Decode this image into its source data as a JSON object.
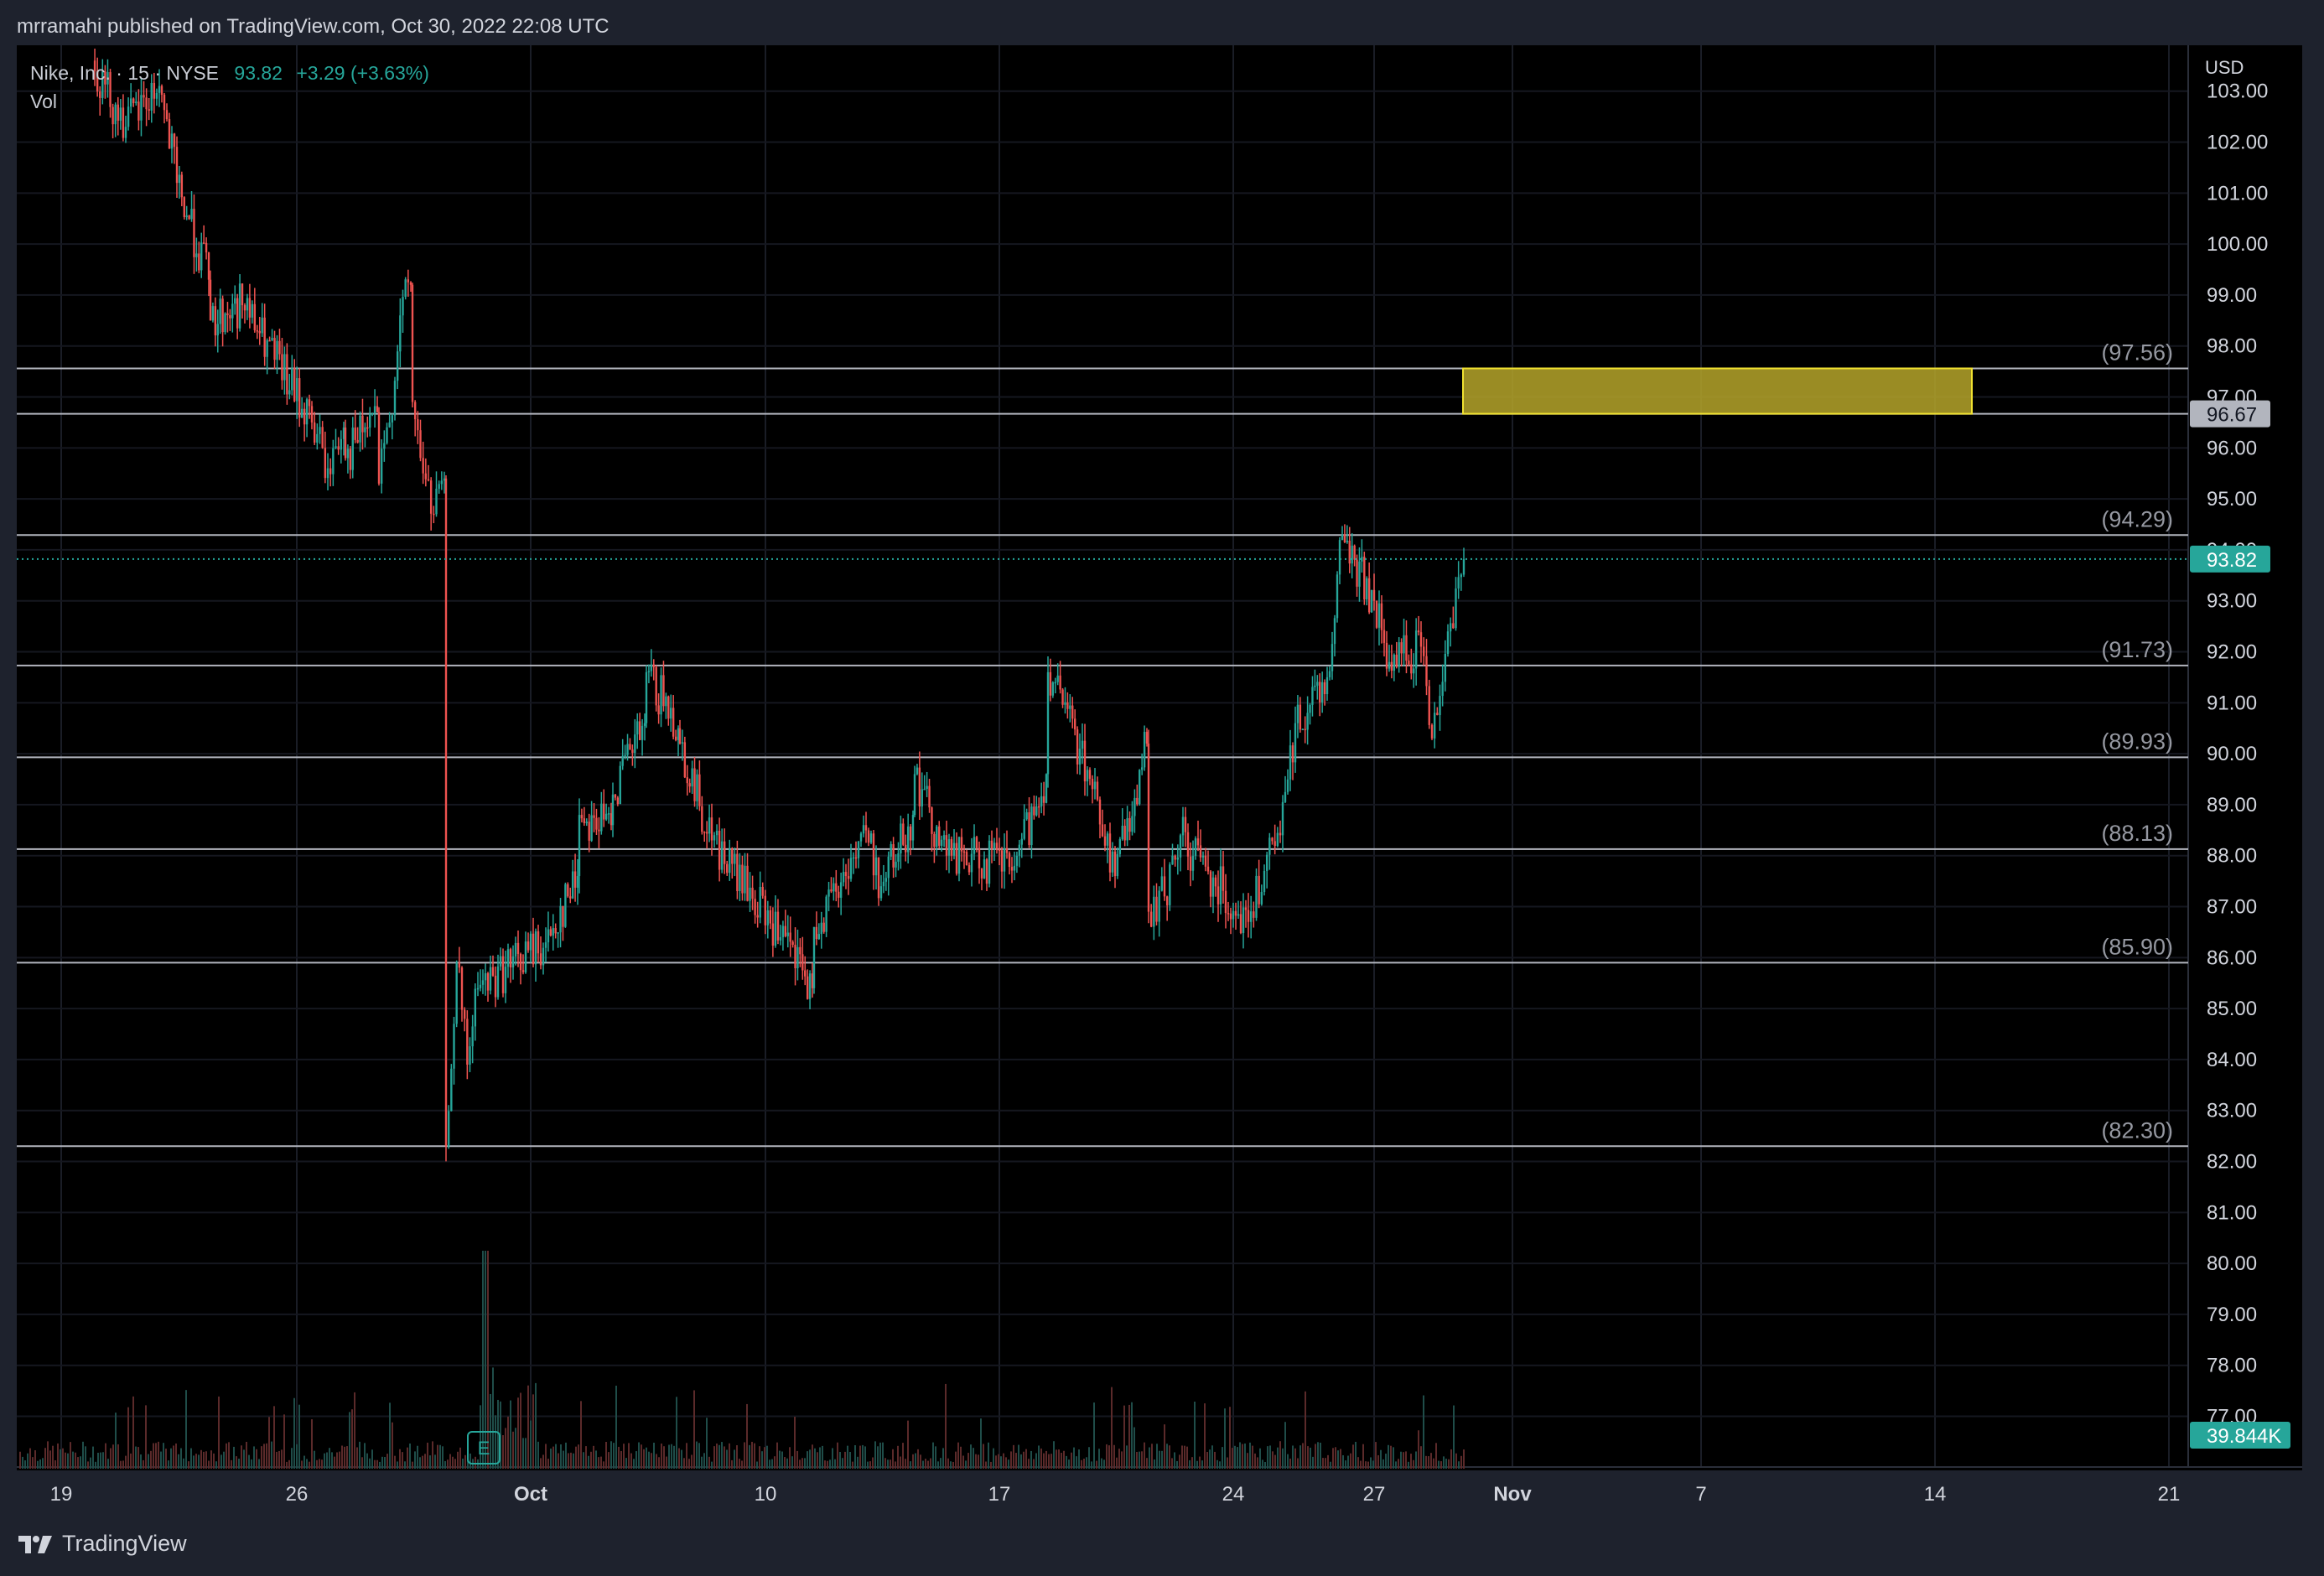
{
  "header": {
    "published_text": "mrramahi published on TradingView.com, Oct 30, 2022 22:08 UTC"
  },
  "legend": {
    "symbol": "Nike, Inc.",
    "interval": "15",
    "exchange": "NYSE",
    "price": "93.82",
    "change": "+3.29 (+3.63%)",
    "volume_label": "Vol"
  },
  "footer": {
    "brand": "TradingView",
    "logo_icon": "tradingview-logo-icon"
  },
  "colors": {
    "background": "#000000",
    "frame": "#1e222d",
    "up": "#26a69a",
    "down": "#ef5350",
    "level_line": "#b2b5be",
    "zone_fill": "#b5a42a",
    "zone_border": "#f0e130",
    "text": "#d1d4dc"
  },
  "chart_data": {
    "type": "candlestick",
    "currency": "USD",
    "ylim": [
      76.7,
      103.9
    ],
    "y_ticks": [
      "103.00",
      "102.00",
      "101.00",
      "100.00",
      "99.00",
      "98.00",
      "97.00",
      "96.00",
      "95.00",
      "94.00",
      "93.00",
      "92.00",
      "91.00",
      "90.00",
      "89.00",
      "88.00",
      "87.00",
      "86.00",
      "85.00",
      "84.00",
      "83.00",
      "82.00",
      "81.00",
      "80.00",
      "79.00",
      "78.00",
      "77.00"
    ],
    "x_ticks": [
      "19",
      "26",
      "Oct",
      "10",
      "17",
      "24",
      "27",
      "Nov",
      "7",
      "14",
      "21"
    ],
    "horizontal_levels": [
      {
        "value": 97.56,
        "label": "(97.56)"
      },
      {
        "value": 96.67,
        "label": "96.67"
      },
      {
        "value": 94.29,
        "label": "(94.29)"
      },
      {
        "value": 91.73,
        "label": "(91.73)"
      },
      {
        "value": 89.93,
        "label": "(89.93)"
      },
      {
        "value": 88.13,
        "label": "(88.13)"
      },
      {
        "value": 85.9,
        "label": "(85.90)"
      },
      {
        "value": 82.3,
        "label": "(82.30)"
      }
    ],
    "zone": {
      "from_date": "Oct 30",
      "to_date": "Nov 15",
      "low": 96.67,
      "high": 97.56
    },
    "current_price": {
      "value": 93.82,
      "label": "93.82"
    },
    "volume_badge": "39.844K",
    "earnings_marker": "E",
    "price_path": [
      {
        "x": "Sep 19",
        "close": 103.6
      },
      {
        "x": "Sep 20",
        "close": 102.3
      },
      {
        "x": "Sep 21",
        "close": 103.1
      },
      {
        "x": "Sep 22",
        "close": 101.2
      },
      {
        "x": "Sep 22",
        "close": 99.3
      },
      {
        "x": "Sep 23",
        "close": 98.5
      },
      {
        "x": "Sep 23",
        "close": 98.8
      },
      {
        "x": "Sep 26",
        "close": 96.5
      },
      {
        "x": "Sep 26",
        "close": 95.6
      },
      {
        "x": "Sep 26",
        "close": 96.4
      },
      {
        "x": "Sep 27",
        "close": 95.8
      },
      {
        "x": "Sep 27",
        "close": 96.7
      },
      {
        "x": "Sep 28",
        "close": 95.3
      },
      {
        "x": "Sep 28",
        "close": 96.5
      },
      {
        "x": "Sep 28",
        "close": 98.6
      },
      {
        "x": "Sep 28",
        "close": 99.2
      },
      {
        "x": "Sep 29",
        "close": 96.9
      },
      {
        "x": "Sep 29",
        "close": 95.5
      },
      {
        "x": "Sep 29",
        "close": 94.7
      },
      {
        "x": "Sep 29",
        "close": 95.4
      },
      {
        "x": "Sep 30",
        "close": 82.3
      },
      {
        "x": "Sep 30",
        "close": 85.9
      },
      {
        "x": "Sep 30",
        "close": 83.9
      },
      {
        "x": "Sep 30",
        "close": 85.4
      },
      {
        "x": "Oct 3",
        "close": 86.3
      },
      {
        "x": "Oct 3",
        "close": 87.6
      },
      {
        "x": "Oct 4",
        "close": 88.8
      },
      {
        "x": "Oct 4",
        "close": 88.6
      },
      {
        "x": "Oct 5",
        "close": 89.2
      },
      {
        "x": "Oct 5",
        "close": 90.6
      },
      {
        "x": "Oct 6",
        "close": 91.6
      },
      {
        "x": "Oct 6",
        "close": 90.5
      },
      {
        "x": "Oct 7",
        "close": 90.2
      },
      {
        "x": "Oct 7",
        "close": 88.3
      },
      {
        "x": "Oct 10",
        "close": 86.4
      },
      {
        "x": "Oct 10",
        "close": 85.4
      },
      {
        "x": "Oct 11",
        "close": 86.6
      },
      {
        "x": "Oct 11",
        "close": 87.6
      },
      {
        "x": "Oct 12",
        "close": 88.6
      },
      {
        "x": "Oct 13",
        "close": 87.4
      },
      {
        "x": "Oct 13",
        "close": 88.8
      },
      {
        "x": "Oct 14",
        "close": 89.6
      },
      {
        "x": "Oct 14",
        "close": 88.0
      },
      {
        "x": "Oct 17",
        "close": 87.8
      },
      {
        "x": "Oct 17",
        "close": 89.6
      },
      {
        "x": "Oct 18",
        "close": 91.6
      },
      {
        "x": "Oct 18",
        "close": 90.1
      },
      {
        "x": "Oct 19",
        "close": 89.1
      },
      {
        "x": "Oct 20",
        "close": 87.6
      },
      {
        "x": "Oct 20",
        "close": 90.2
      },
      {
        "x": "Oct 21",
        "close": 86.9
      },
      {
        "x": "Oct 21",
        "close": 87.2
      },
      {
        "x": "Oct 21",
        "close": 88.4
      },
      {
        "x": "Oct 24",
        "close": 86.7
      },
      {
        "x": "Oct 24",
        "close": 87.7
      },
      {
        "x": "Oct 24",
        "close": 88.4
      },
      {
        "x": "Oct 25",
        "close": 90.6
      },
      {
        "x": "Oct 25",
        "close": 91.5
      },
      {
        "x": "Oct 26",
        "close": 94.3
      },
      {
        "x": "Oct 26",
        "close": 93.0
      },
      {
        "x": "Oct 27",
        "close": 91.8
      },
      {
        "x": "Oct 27",
        "close": 92.1
      },
      {
        "x": "Oct 28",
        "close": 90.3
      },
      {
        "x": "Oct 28",
        "close": 92.4
      },
      {
        "x": "Oct 28",
        "close": 93.82
      }
    ]
  }
}
